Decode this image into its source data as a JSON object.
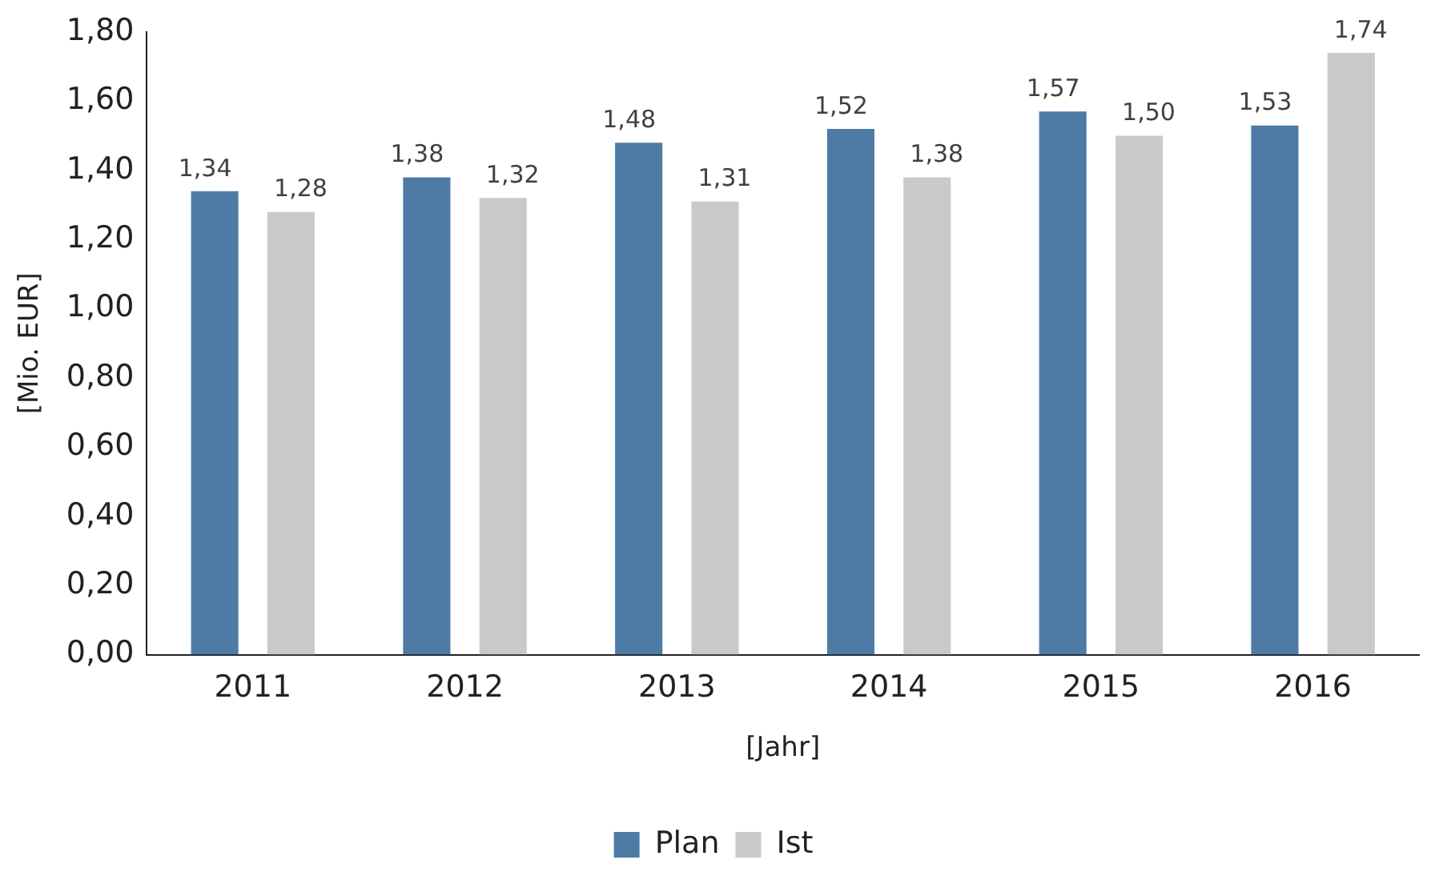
{
  "chart_data": {
    "type": "bar",
    "xlabel": "[Jahr]",
    "ylabel": "[Mio. EUR]",
    "categories": [
      "2011",
      "2012",
      "2013",
      "2014",
      "2015",
      "2016"
    ],
    "series": [
      {
        "name": "Plan",
        "color": "#4e7ba6",
        "values": [
          1.34,
          1.38,
          1.48,
          1.52,
          1.57,
          1.53
        ],
        "value_labels": [
          "1,34",
          "1,38",
          "1,48",
          "1,52",
          "1,57",
          "1,53"
        ]
      },
      {
        "name": "Ist",
        "color": "#c9c9c9",
        "values": [
          1.28,
          1.32,
          1.31,
          1.38,
          1.5,
          1.74
        ],
        "value_labels": [
          "1,28",
          "1,32",
          "1,31",
          "1,38",
          "1,50",
          "1,74"
        ]
      }
    ],
    "ylim": [
      0,
      1.8
    ],
    "yticks": [
      {
        "value": 0,
        "label": "0,00"
      },
      {
        "value": 0.2,
        "label": "0,20"
      },
      {
        "value": 0.4,
        "label": "0,40"
      },
      {
        "value": 0.6,
        "label": "0,60"
      },
      {
        "value": 0.8,
        "label": "0,80"
      },
      {
        "value": 1,
        "label": "1,00"
      },
      {
        "value": 1.2,
        "label": "1,20"
      },
      {
        "value": 1.4,
        "label": "1,40"
      },
      {
        "value": 1.6,
        "label": "1,60"
      },
      {
        "value": 1.8,
        "label": "1,80"
      }
    ],
    "grid": false,
    "legend": "bottom"
  }
}
